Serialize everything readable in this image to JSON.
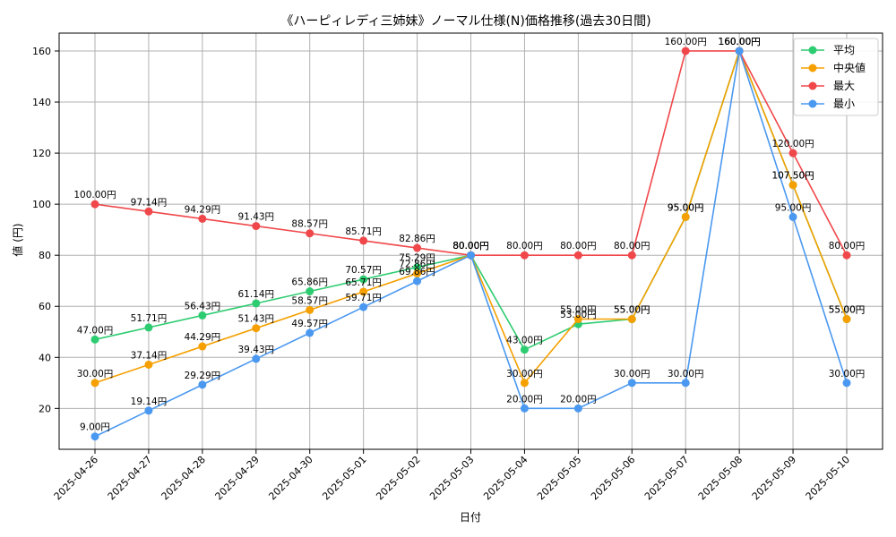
{
  "chart_data": {
    "type": "line",
    "title": "《ハーピィレディ三姉妹》ノーマル仕様(N)価格推移(過去30日間)",
    "xlabel": "日付",
    "ylabel": "値 (円)",
    "ylim": [
      4,
      167
    ],
    "yticks": [
      20,
      40,
      60,
      80,
      100,
      120,
      140,
      160
    ],
    "grid": true,
    "legend_position": "top-right",
    "label_suffix": "円",
    "categories": [
      "2025-04-26",
      "2025-04-27",
      "2025-04-28",
      "2025-04-29",
      "2025-04-30",
      "2025-05-01",
      "2025-05-02",
      "2025-05-03",
      "2025-05-04",
      "2025-05-05",
      "2025-05-06",
      "2025-05-07",
      "2025-05-08",
      "2025-05-09",
      "2025-05-10"
    ],
    "series": [
      {
        "name": "平均",
        "color": "#2ecc71",
        "values": [
          47.0,
          51.71,
          56.43,
          61.14,
          65.86,
          70.57,
          75.29,
          80.0,
          43.0,
          53.0,
          55.0,
          95.0,
          160.0,
          107.5,
          55.0
        ]
      },
      {
        "name": "中央値",
        "color": "#f5a000",
        "values": [
          30.0,
          37.14,
          44.29,
          51.43,
          58.57,
          65.71,
          72.86,
          80.0,
          30.0,
          55.0,
          55.0,
          95.0,
          160.0,
          107.5,
          55.0
        ]
      },
      {
        "name": "最大",
        "color": "#f0474a",
        "values": [
          100.0,
          97.14,
          94.29,
          91.43,
          88.57,
          85.71,
          82.86,
          80.0,
          80.0,
          80.0,
          80.0,
          160.0,
          160.0,
          120.0,
          80.0
        ]
      },
      {
        "name": "最小",
        "color": "#4a98f0",
        "values": [
          9.0,
          19.14,
          29.29,
          39.43,
          49.57,
          59.71,
          69.86,
          80.0,
          20.0,
          20.0,
          30.0,
          30.0,
          160.0,
          95.0,
          30.0
        ]
      }
    ]
  }
}
